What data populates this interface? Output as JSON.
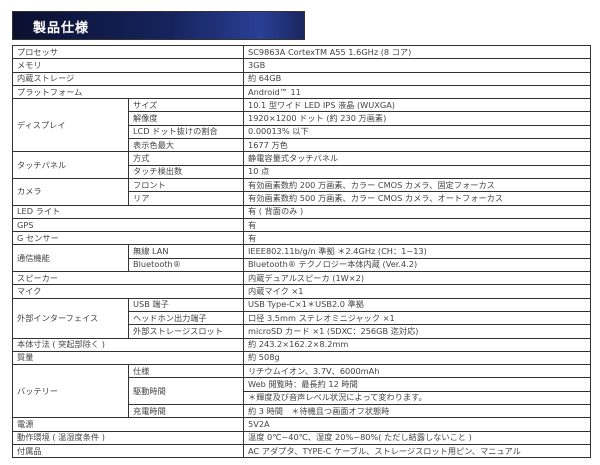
{
  "title": "製品仕様",
  "specs": [
    {
      "label": "プロセッサ",
      "value": "SC9863A CortexTM A55 1.6GHz (8 コア)"
    },
    {
      "label": "メモリ",
      "value": "3GB"
    },
    {
      "label": "内蔵ストレージ",
      "value": "約 64GB"
    },
    {
      "label": "プラットフォーム",
      "value": "Android™ 11"
    },
    {
      "label": "ディスプレイ",
      "items": [
        {
          "sub": "サイズ",
          "values": [
            "10.1 型ワイド LED IPS 液晶 (WUXGA)"
          ]
        },
        {
          "sub": "解像度",
          "values": [
            "1920×1200 ドット (約 230 万画素)"
          ]
        },
        {
          "sub": "LCD ドット抜けの割合",
          "values": [
            "0.00013% 以下"
          ]
        },
        {
          "sub": "表示色最大",
          "values": [
            "1677 万色"
          ]
        }
      ]
    },
    {
      "label": "タッチパネル",
      "items": [
        {
          "sub": "方式",
          "values": [
            "静電容量式タッチパネル"
          ]
        },
        {
          "sub": "タッチ検出数",
          "values": [
            "10 点"
          ]
        }
      ]
    },
    {
      "label": "カメラ",
      "items": [
        {
          "sub": "フロント",
          "values": [
            "有効画素数約 200 万画素、カラー CMOS カメラ、固定フォーカス"
          ]
        },
        {
          "sub": "リア",
          "values": [
            "有効画素数約 500 万画素、カラー CMOS カメラ、オートフォーカス"
          ]
        }
      ]
    },
    {
      "label": "LED ライト",
      "value": "有 ( 背面のみ )"
    },
    {
      "label": "GPS",
      "value": "有"
    },
    {
      "label": "G センサー",
      "value": "有"
    },
    {
      "label": "通信機能",
      "items": [
        {
          "sub": "無線 LAN",
          "values": [
            "IEEE802.11b/g/n 準拠 ＊2.4GHz (CH：1~13)"
          ]
        },
        {
          "sub": "Bluetooth®",
          "values": [
            "Bluetooth® テクノロジー本体内蔵 (Ver.4.2)"
          ]
        }
      ]
    },
    {
      "label": "スピーカー",
      "value": "内蔵デュアルスピーカ (1W×2)"
    },
    {
      "label": "マイク",
      "value": "内蔵マイク ×1"
    },
    {
      "label": "外部インターフェイス",
      "items": [
        {
          "sub": "USB 端子",
          "values": [
            "USB Type-C×1＊USB2.0 準拠"
          ]
        },
        {
          "sub": "ヘッドホン出力端子",
          "values": [
            "口径 3.5mm ステレオミニジャック ×1"
          ]
        },
        {
          "sub": "外部ストレージスロット",
          "values": [
            "microSD カード ×1 (SDXC：256GB 迄対応)"
          ]
        }
      ]
    },
    {
      "label": "本体寸法 ( 突起部除く )",
      "value": "約 243.2×162.2×8.2mm"
    },
    {
      "label": "質量",
      "value": "約 508g"
    },
    {
      "label": "バッテリー",
      "items": [
        {
          "sub": "仕様",
          "values": [
            "リチウムイオン、3.7V、6000mAh"
          ]
        },
        {
          "sub": "駆動時間",
          "values": [
            "Web 閲覧時：最長約 12 時間",
            "＊輝度及び音声レベル状況によって変わります。"
          ]
        },
        {
          "sub": "充電時間",
          "values": [
            "約 3 時間　＊待機且つ画面オフ状態時"
          ]
        }
      ]
    },
    {
      "label": "電源",
      "value": "5V2A"
    },
    {
      "label": "動作環境 ( 温湿度条件 )",
      "value": "温度 0℃~40℃、湿度 20%~80%( ただし結露しないこと )"
    },
    {
      "label": "付属品",
      "value": "AC アダプタ、TYPE-C ケーブル、ストレージスロット用ピン、マニュアル"
    }
  ]
}
